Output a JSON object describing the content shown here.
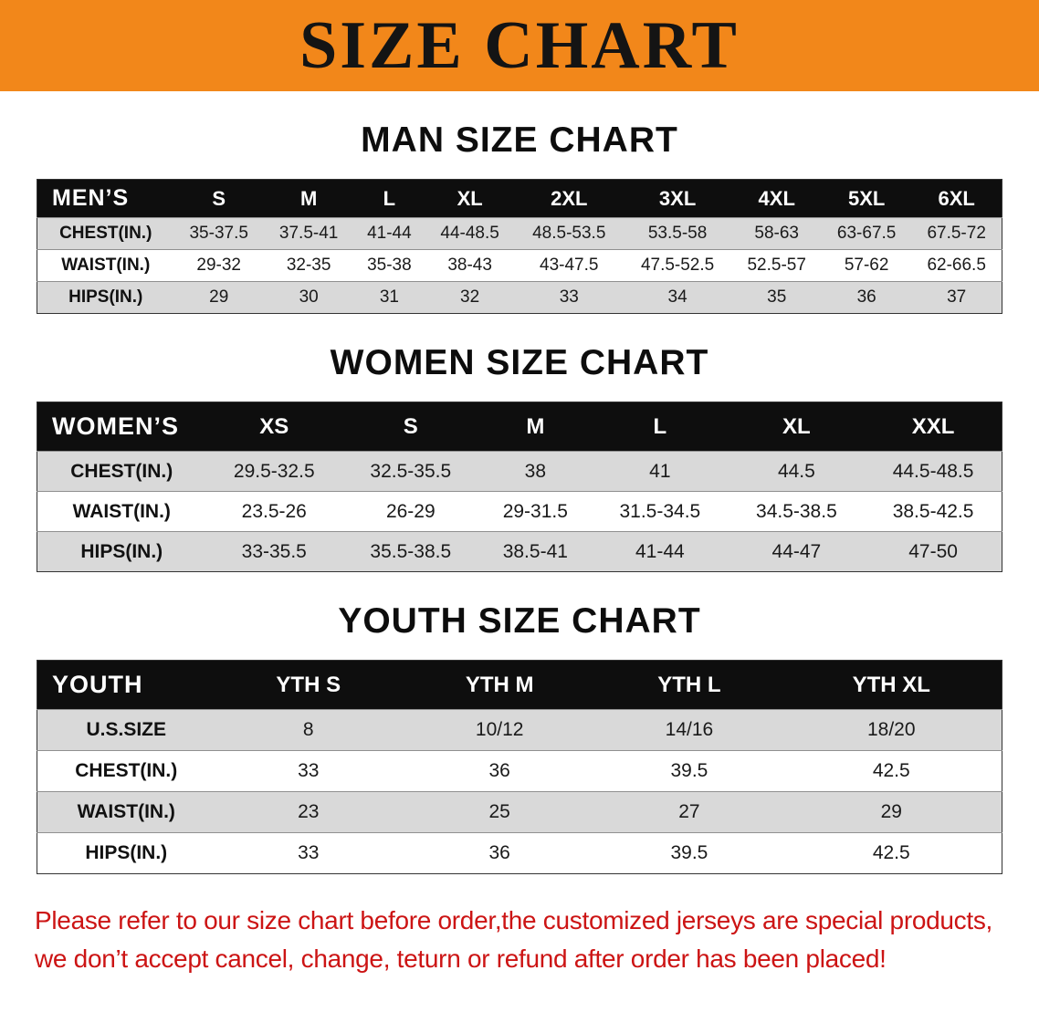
{
  "banner": {
    "title": "SIZE CHART",
    "bg_color": "#f2871a"
  },
  "sections": [
    {
      "id": "men",
      "heading": "MAN SIZE CHART",
      "table": {
        "header": [
          "MEN’S",
          "S",
          "M",
          "L",
          "XL",
          "2XL",
          "3XL",
          "4XL",
          "5XL",
          "6XL"
        ],
        "rows": [
          [
            "CHEST(IN.)",
            "35-37.5",
            "37.5-41",
            "41-44",
            "44-48.5",
            "48.5-53.5",
            "53.5-58",
            "58-63",
            "63-67.5",
            "67.5-72"
          ],
          [
            "WAIST(IN.)",
            "29-32",
            "32-35",
            "35-38",
            "38-43",
            "43-47.5",
            "47.5-52.5",
            "52.5-57",
            "57-62",
            "62-66.5"
          ],
          [
            "HIPS(IN.)",
            "29",
            "30",
            "31",
            "32",
            "33",
            "34",
            "35",
            "36",
            "37"
          ]
        ]
      }
    },
    {
      "id": "women",
      "heading": "WOMEN SIZE CHART",
      "table": {
        "header": [
          "WOMEN’S",
          "XS",
          "S",
          "M",
          "L",
          "XL",
          "XXL"
        ],
        "rows": [
          [
            "CHEST(IN.)",
            "29.5-32.5",
            "32.5-35.5",
            "38",
            "41",
            "44.5",
            "44.5-48.5"
          ],
          [
            "WAIST(IN.)",
            "23.5-26",
            "26-29",
            "29-31.5",
            "31.5-34.5",
            "34.5-38.5",
            "38.5-42.5"
          ],
          [
            "HIPS(IN.)",
            "33-35.5",
            "35.5-38.5",
            "38.5-41",
            "41-44",
            "44-47",
            "47-50"
          ]
        ]
      }
    },
    {
      "id": "youth",
      "heading": "YOUTH SIZE CHART",
      "table": {
        "header": [
          "YOUTH",
          "YTH S",
          "YTH M",
          "YTH L",
          "YTH XL"
        ],
        "rows": [
          [
            "U.S.SIZE",
            "8",
            "10/12",
            "14/16",
            "18/20"
          ],
          [
            "CHEST(IN.)",
            "33",
            "36",
            "39.5",
            "42.5"
          ],
          [
            "WAIST(IN.)",
            "23",
            "25",
            "27",
            "29"
          ],
          [
            "HIPS(IN.)",
            "33",
            "36",
            "39.5",
            "42.5"
          ]
        ]
      }
    }
  ],
  "disclaimer": {
    "color": "#cc1414",
    "line1": "Please refer to our size chart before order,the customized jerseys are special products,",
    "line2": "we don’t accept cancel, change, teturn or refund after order has been placed!"
  }
}
